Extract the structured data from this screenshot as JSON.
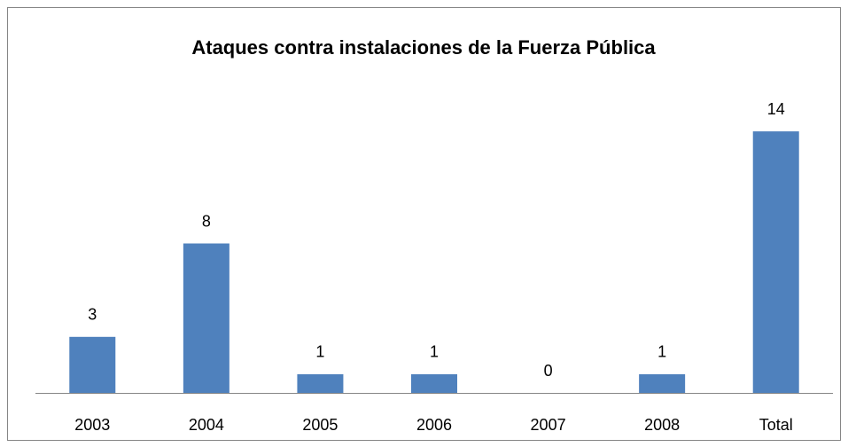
{
  "chart_data": {
    "type": "bar",
    "title": "Ataques contra instalaciones de la Fuerza Pública",
    "categories": [
      "2003",
      "2004",
      "2005",
      "2006",
      "2007",
      "2008",
      "Total"
    ],
    "values": [
      3,
      8,
      1,
      1,
      0,
      1,
      14
    ],
    "color": "#4f81bd",
    "ylim": [
      0,
      16
    ]
  }
}
